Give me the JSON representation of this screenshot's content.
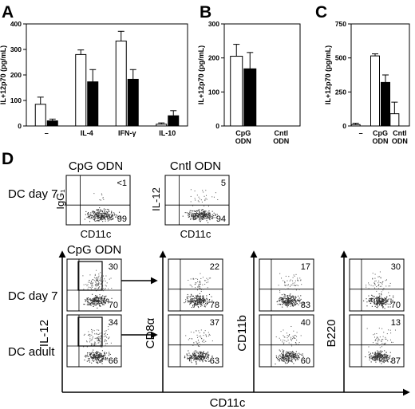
{
  "panels": {
    "A": "A",
    "B": "B",
    "C": "C",
    "D": "D"
  },
  "chart_data": [
    {
      "type": "bar",
      "panel": "A",
      "ylabel": "IL+12p70 (pg/mL)",
      "ylim": [
        0,
        400
      ],
      "yticks": [
        "0",
        "100",
        "200",
        "300",
        "400"
      ],
      "categories": [
        "–",
        "IL-4",
        "IFN-γ",
        "IL-10"
      ],
      "series": [
        {
          "fill": "#ffffff",
          "values": [
            85,
            280,
            333,
            7
          ],
          "errors": [
            28,
            18,
            38,
            5
          ]
        },
        {
          "fill": "#000000",
          "values": [
            20,
            173,
            183,
            40
          ],
          "errors": [
            7,
            48,
            38,
            20
          ]
        }
      ]
    },
    {
      "type": "bar",
      "panel": "B",
      "ylabel": "IL+12p70 (pg/mL)",
      "ylim": [
        0,
        300
      ],
      "yticks": [
        "0",
        "100",
        "200",
        "300"
      ],
      "categories": [
        "CpG\nODN",
        "Cntl\nODN"
      ],
      "series": [
        {
          "fill": "#ffffff",
          "values": [
            205,
            0
          ],
          "errors": [
            35,
            0
          ]
        },
        {
          "fill": "#000000",
          "values": [
            168,
            0
          ],
          "errors": [
            48,
            0
          ]
        }
      ]
    },
    {
      "type": "bar",
      "panel": "C",
      "ylabel": "IL+12p70 (pg/mL)",
      "ylim": [
        0,
        750
      ],
      "yticks": [
        "0",
        "250",
        "500",
        "750"
      ],
      "categories": [
        "–",
        "CpG\nODN",
        "Cntl\nODN"
      ],
      "series": [
        {
          "fill": "#ffffff",
          "values": [
            10,
            515,
            90
          ],
          "errors": [
            10,
            15,
            85
          ]
        },
        {
          "fill": "#000000",
          "values": [
            0,
            320,
            0
          ],
          "errors": [
            0,
            55,
            0
          ]
        }
      ]
    }
  ],
  "flow": {
    "top_row": [
      {
        "title": "CpG ODN",
        "ylabel": "IgG₁",
        "xlabel": "CD11c",
        "quadrant_values": [
          "<1",
          "99"
        ]
      },
      {
        "title": "Cntl ODN",
        "ylabel": "IL-12",
        "xlabel": "CD11c",
        "quadrant_values": [
          "5",
          "94"
        ]
      }
    ],
    "row_labels": [
      "DC day 7",
      "DC day 7",
      "DC adult"
    ],
    "bottom_title": "CpG ODN",
    "big_ylabel": "IL-12",
    "big_xlabel": "CD11c",
    "gate_rows": [
      {
        "name": "DC day 7",
        "values": [
          "30",
          "70"
        ]
      },
      {
        "name": "DC adult",
        "values": [
          "34",
          "66"
        ]
      }
    ],
    "markers": [
      "CD8α",
      "CD11b",
      "B220"
    ],
    "marker_plots": [
      [
        [
          "22",
          "78"
        ],
        [
          "17",
          "83"
        ],
        [
          "30",
          "70"
        ]
      ],
      [
        [
          "37",
          "63"
        ],
        [
          "40",
          "60"
        ],
        [
          "13",
          "87"
        ]
      ]
    ]
  }
}
